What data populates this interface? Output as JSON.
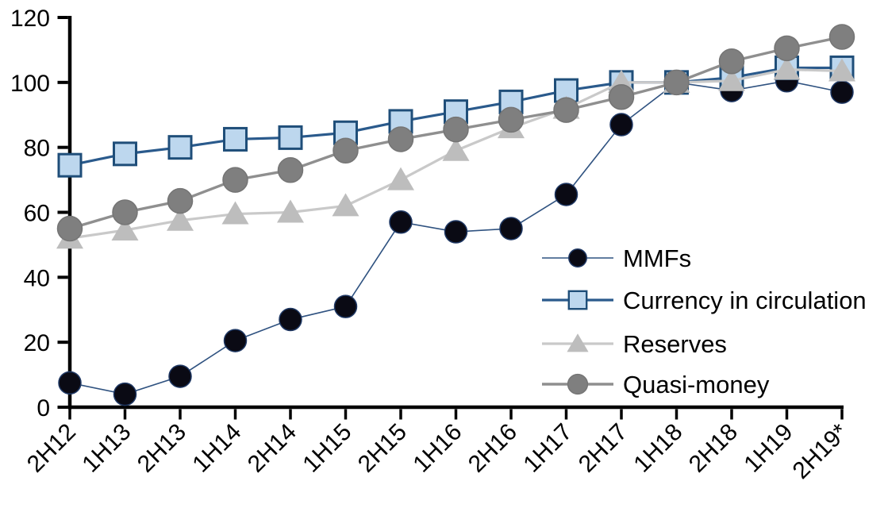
{
  "chart_data": {
    "type": "line",
    "title": "",
    "xlabel": "",
    "ylabel": "",
    "background": "#ffffff",
    "axis_color": "#000000",
    "grid": false,
    "legend_position": "inside-right",
    "ylim": [
      0,
      120
    ],
    "yticks": [
      0,
      20,
      40,
      60,
      80,
      100,
      120
    ],
    "categories": [
      "2H12",
      "1H13",
      "2H13",
      "1H14",
      "2H14",
      "1H15",
      "2H15",
      "1H16",
      "2H16",
      "1H17",
      "2H17",
      "1H18",
      "2H18",
      "1H19",
      "2H19*"
    ],
    "series": [
      {
        "name": "MMFs",
        "marker": "circle",
        "marker_fill": "#0a0a14",
        "marker_stroke": "#1f3864",
        "line_color": "#2f5280",
        "line_width": 1.6,
        "marker_radius": 14,
        "values": [
          7.5,
          4,
          9.5,
          20.5,
          27,
          31,
          57,
          54,
          55,
          65.5,
          87,
          100,
          97.5,
          100.5,
          97
        ]
      },
      {
        "name": "Currency in circulation",
        "marker": "square",
        "marker_fill": "#bdd7ee",
        "marker_stroke": "#1f4e79",
        "line_color": "#2a5a8c",
        "line_width": 3.2,
        "marker_radius": 14,
        "values": [
          74.5,
          78,
          80,
          82.5,
          83,
          84.5,
          88,
          91,
          94,
          97.5,
          100,
          100,
          101.5,
          104.5,
          104.5
        ]
      },
      {
        "name": "Reserves",
        "marker": "triangle",
        "marker_fill": "#bdbdbd",
        "marker_stroke": "#b3b3b3",
        "line_color": "#c9c9c9",
        "line_width": 3.2,
        "marker_radius": 16,
        "values": [
          52,
          54.5,
          57.5,
          59.5,
          60,
          62,
          70,
          79,
          86,
          92,
          100,
          100,
          100.5,
          104,
          103.5
        ]
      },
      {
        "name": "Quasi-money",
        "marker": "circle",
        "marker_fill": "#7f7f7f",
        "marker_stroke": "#757575",
        "line_color": "#8f8f8f",
        "line_width": 3.4,
        "marker_radius": 15.5,
        "values": [
          55,
          60,
          63.5,
          70,
          73,
          79,
          82.5,
          85.5,
          88.5,
          91.5,
          95.5,
          100,
          106.5,
          110.5,
          114
        ]
      }
    ]
  }
}
